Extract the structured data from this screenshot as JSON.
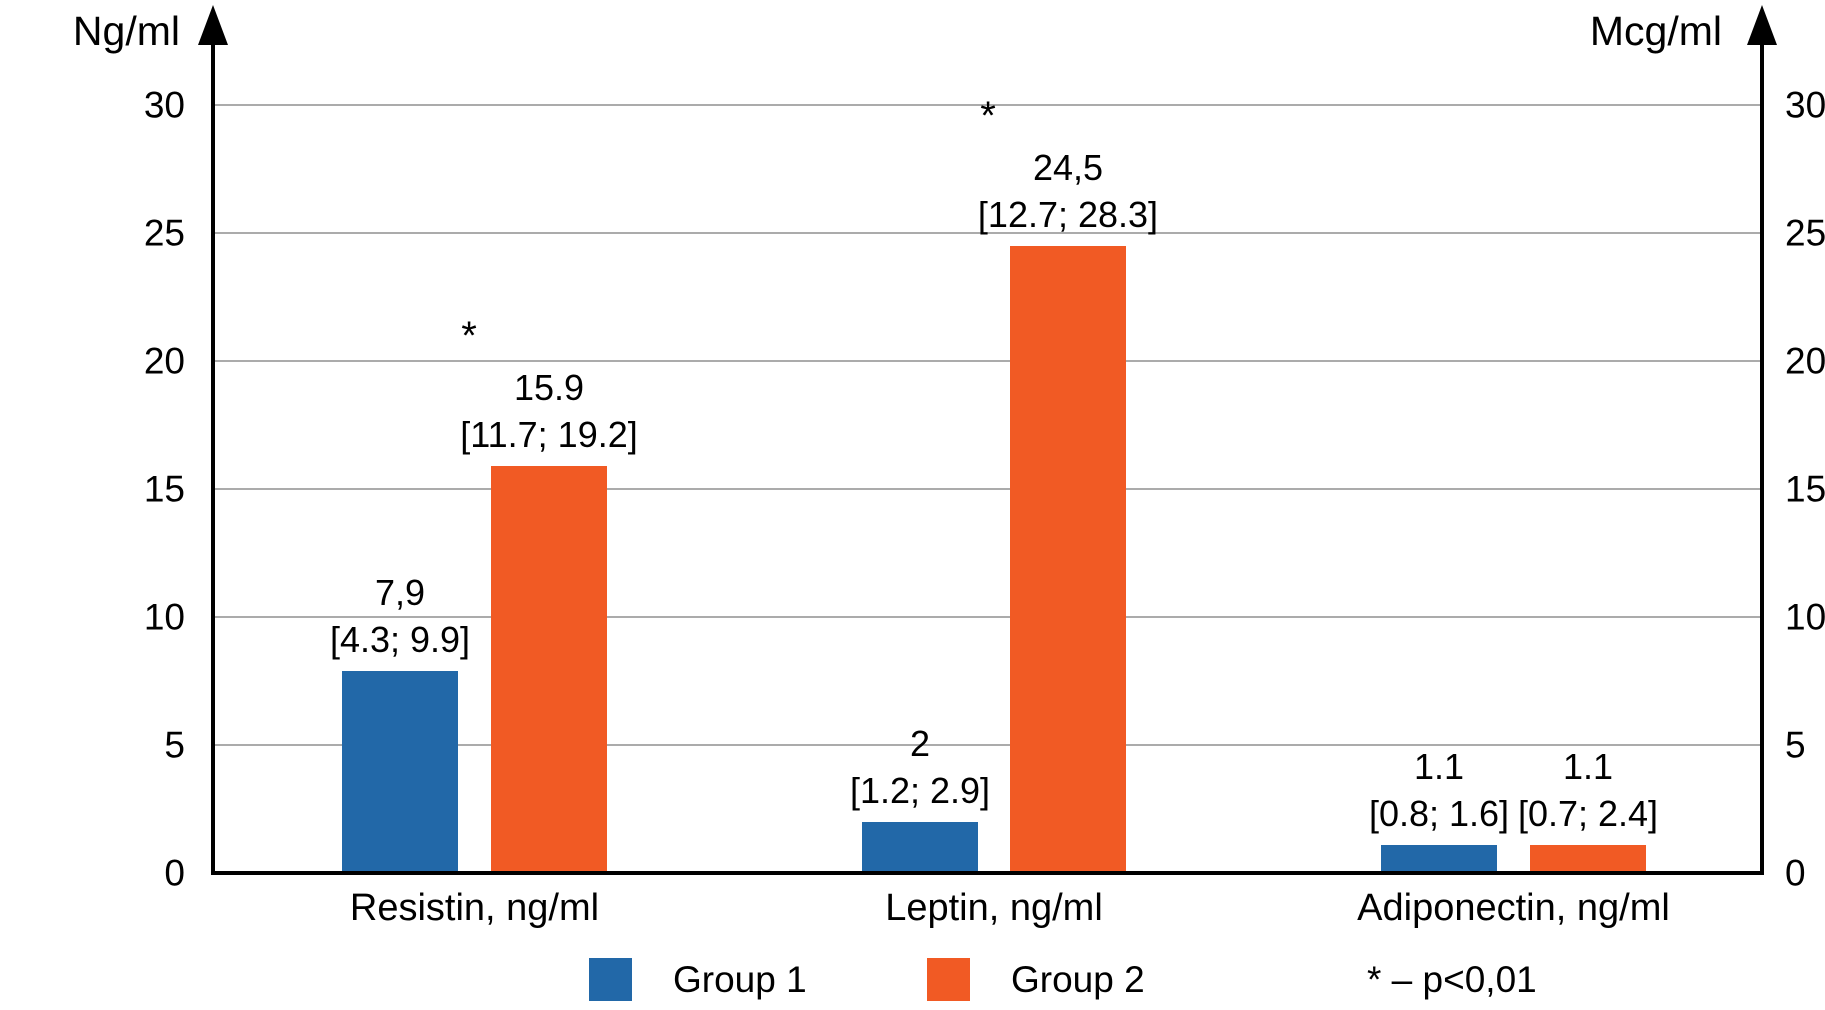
{
  "chart_data": {
    "type": "bar",
    "title": "",
    "left_axis": {
      "unit": "Ng/ml",
      "ticks": [
        0,
        5,
        10,
        15,
        20,
        25,
        30
      ],
      "min": 0,
      "max": 30
    },
    "right_axis": {
      "unit": "Mcg/ml",
      "ticks": [
        0,
        5,
        10,
        15,
        20,
        25,
        30
      ],
      "min": 0,
      "max": 30
    },
    "grid": "horizontal",
    "legend_position": "bottom",
    "series": [
      "Group 1",
      "Group 2"
    ],
    "colors": {
      "series": [
        "#2268A8",
        "#F15A24"
      ],
      "gridline": "#ABABAB",
      "axis": "#000000"
    },
    "groups": [
      {
        "category": "Resistin, ng/ml",
        "bars": [
          {
            "series": "Group 1",
            "value": 7.9,
            "value_label": "7,9",
            "range_label": "[4.3; 9.9]",
            "asterisk": false
          },
          {
            "series": "Group 2",
            "value": 15.9,
            "value_label": "15.9",
            "range_label": "[11.7; 19.2]",
            "asterisk": true
          }
        ]
      },
      {
        "category": "Leptin, ng/ml",
        "bars": [
          {
            "series": "Group 1",
            "value": 2,
            "value_label": "2",
            "range_label": "[1.2; 2.9]",
            "asterisk": false
          },
          {
            "series": "Group 2",
            "value": 24.5,
            "value_label": "24,5",
            "range_label": "[12.7; 28.3]",
            "asterisk": true
          }
        ]
      },
      {
        "category": "Adiponectin, ng/ml",
        "bars": [
          {
            "series": "Group 1",
            "value": 1.1,
            "value_label": "1.1",
            "range_label": "[0.8; 1.6]",
            "asterisk": false
          },
          {
            "series": "Group 2",
            "value": 1.1,
            "value_label": "1.1",
            "range_label": "[0.7; 2.4]",
            "asterisk": false
          }
        ]
      }
    ],
    "legend": [
      {
        "label": "Group 1",
        "color": "#2268A8"
      },
      {
        "label": "Group 2",
        "color": "#F15A24"
      }
    ],
    "significance_marker": "*",
    "footnote": "* – p<0,01"
  }
}
